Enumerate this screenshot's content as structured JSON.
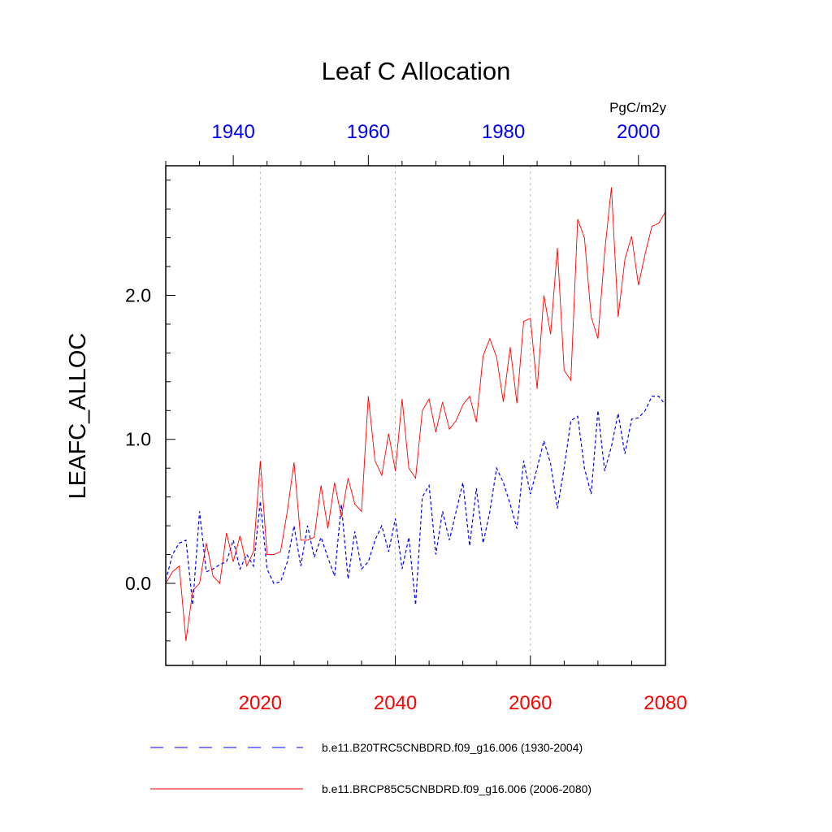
{
  "chart_data": {
    "type": "line",
    "title": "Leaf C Allocation",
    "units": "PgC/m2y",
    "ylabel": "LEAFC_ALLOC",
    "ylim": [
      -0.57,
      2.9
    ],
    "yticks": [
      0.0,
      1.0,
      2.0
    ],
    "ytick_labels": [
      "0.0",
      "1.0",
      "2.0"
    ],
    "bottom_axis": {
      "range": [
        2006,
        2080
      ],
      "ticks": [
        2020,
        2040,
        2060,
        2080
      ],
      "labels": [
        "2020",
        "2040",
        "2060",
        "2080"
      ],
      "color": "#ff0000"
    },
    "top_axis": {
      "range": [
        1930,
        2004
      ],
      "ticks": [
        1940,
        1960,
        1980,
        2000
      ],
      "labels": [
        "1940",
        "1960",
        "1980",
        "2000"
      ],
      "color": "#0000ff"
    },
    "gridlines_x": [
      2020,
      2040,
      2060
    ],
    "series": [
      {
        "name": "b.e11.B20TRC5CNBDRD.f09_g16.006 (1930-2004)",
        "color": "#0000ff",
        "style": "dashed",
        "axis": "top",
        "x_start": 1930,
        "values": [
          0.02,
          0.2,
          0.28,
          0.3,
          -0.15,
          0.5,
          0.08,
          0.1,
          0.13,
          0.15,
          0.3,
          0.1,
          0.2,
          0.12,
          0.57,
          0.1,
          0.0,
          0.01,
          0.15,
          0.4,
          0.12,
          0.4,
          0.18,
          0.32,
          0.18,
          0.05,
          0.55,
          0.03,
          0.36,
          0.1,
          0.15,
          0.3,
          0.4,
          0.22,
          0.45,
          0.1,
          0.32,
          -0.15,
          0.6,
          0.68,
          0.2,
          0.5,
          0.3,
          0.5,
          0.7,
          0.26,
          0.66,
          0.28,
          0.5,
          0.8,
          0.7,
          0.55,
          0.38,
          0.85,
          0.62,
          0.8,
          0.99,
          0.83,
          0.52,
          0.8,
          1.13,
          1.16,
          0.8,
          0.62,
          1.2,
          0.78,
          0.95,
          1.18,
          0.9,
          1.14,
          1.15,
          1.2,
          1.3,
          1.3,
          1.24
        ]
      },
      {
        "name": "b.e11.BRCP85C5CNBDRD.f09_g16.006 (2006-2080)",
        "color": "#ff0000",
        "style": "solid",
        "axis": "bottom",
        "x_start": 2006,
        "values": [
          0.0,
          0.08,
          0.12,
          -0.4,
          -0.05,
          0.0,
          0.28,
          0.05,
          0.0,
          0.35,
          0.15,
          0.33,
          0.12,
          0.22,
          0.85,
          0.2,
          0.2,
          0.22,
          0.5,
          0.84,
          0.3,
          0.3,
          0.32,
          0.68,
          0.38,
          0.7,
          0.46,
          0.73,
          0.55,
          0.5,
          1.3,
          0.85,
          0.75,
          1.04,
          0.78,
          1.28,
          0.8,
          0.73,
          1.2,
          1.28,
          1.05,
          1.26,
          1.07,
          1.13,
          1.24,
          1.3,
          1.12,
          1.58,
          1.7,
          1.57,
          1.26,
          1.64,
          1.25,
          1.82,
          1.84,
          1.35,
          2.0,
          1.73,
          2.33,
          1.48,
          1.41,
          2.53,
          2.4,
          1.85,
          1.7,
          2.3,
          2.75,
          1.85,
          2.25,
          2.41,
          2.07,
          2.29,
          2.48,
          2.5,
          2.58
        ]
      }
    ]
  }
}
